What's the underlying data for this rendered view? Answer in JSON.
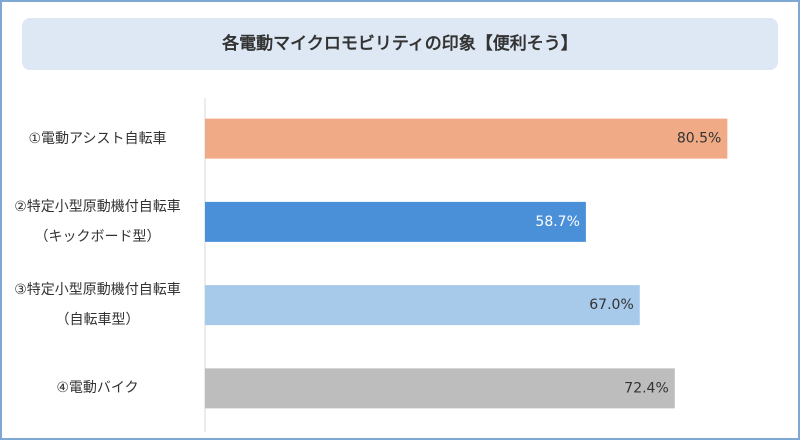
{
  "chart_data": {
    "type": "hbar",
    "title": "各電動マイクロモビリティの印象【便利そう】",
    "categories": [
      "①電動アシスト自転車",
      "②特定小型原動機付自転車\n（キックボード型）",
      "③特定小型原動機付自転車\n（自転車型）",
      "④電動バイク"
    ],
    "values": [
      80.5,
      58.7,
      67.0,
      72.4
    ],
    "value_labels": [
      "80.5%",
      "58.7%",
      "67.0%",
      "72.4%"
    ],
    "colors": [
      "#f0ab86",
      "#4a90d9",
      "#a7c9ea",
      "#bdbdbd"
    ],
    "xlim": [
      0,
      90
    ]
  }
}
